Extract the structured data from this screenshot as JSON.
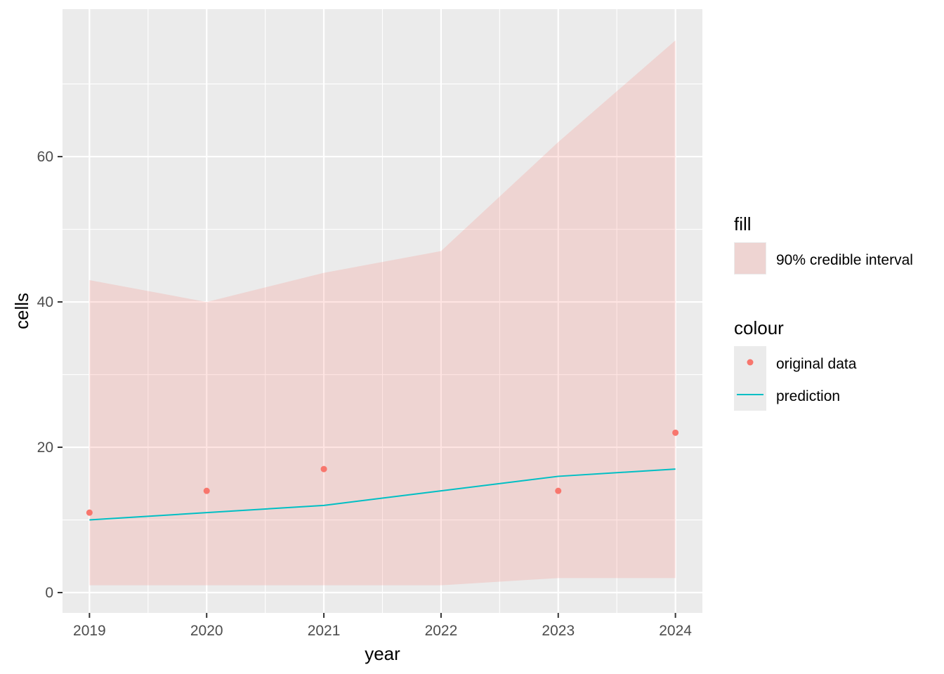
{
  "chart_data": {
    "type": "line",
    "x": [
      2019,
      2020,
      2021,
      2022,
      2023,
      2024
    ],
    "xlabel": "year",
    "ylabel": "cells",
    "xlim": [
      2018.77,
      2024.23
    ],
    "ylim": [
      -2.8,
      80.3
    ],
    "x_ticks": [
      "2019",
      "2020",
      "2021",
      "2022",
      "2023",
      "2024"
    ],
    "y_ticks": [
      "0",
      "20",
      "40",
      "60"
    ],
    "y_tick_values": [
      0,
      20,
      40,
      60
    ],
    "grid": true,
    "legend_position": "right",
    "series": [
      {
        "name": "original data",
        "kind": "point",
        "color": "#f8766d",
        "values": [
          11,
          14,
          17,
          null,
          14,
          22
        ],
        "x": [
          2019,
          2020,
          2021,
          2022,
          2023,
          2024
        ]
      },
      {
        "name": "prediction",
        "kind": "line",
        "color": "#00bfc4",
        "values": [
          10,
          11,
          12,
          14,
          16,
          17
        ]
      }
    ],
    "ribbon": {
      "name": "90% credible interval",
      "color": "#f8766d",
      "opacity": 0.2,
      "lower": [
        1,
        1,
        1,
        1,
        2,
        2
      ],
      "upper": [
        43,
        40,
        44,
        47,
        62,
        76
      ]
    },
    "legend": {
      "fill_title": "fill",
      "fill_label": "90% credible interval",
      "colour_title": "colour",
      "point_label": "original data",
      "line_label": "prediction"
    },
    "colors": {
      "panel": "#ebebeb",
      "grid": "#ffffff",
      "point": "#f8766d",
      "line": "#00bfc4",
      "ribbon": "#f8766d"
    }
  }
}
